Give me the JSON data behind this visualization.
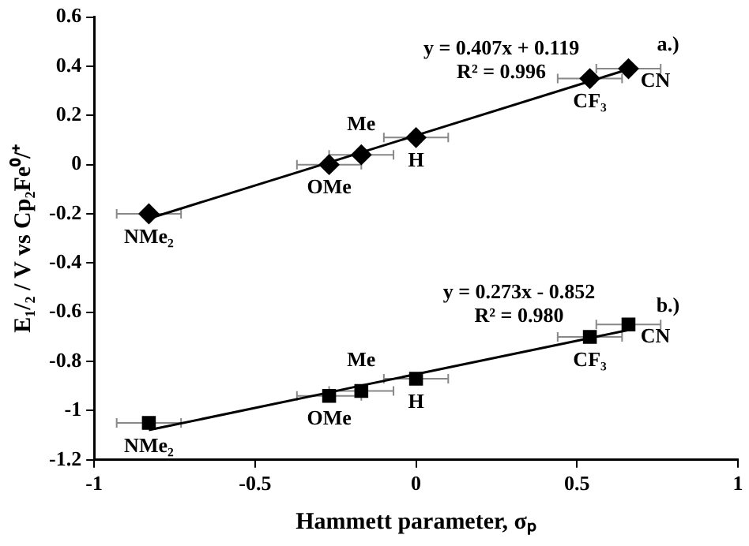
{
  "chart_data": {
    "type": "scatter",
    "xlabel": "Hammett parameter, σₚ",
    "ylabel": "E₁/₂ / V vs Cp₂Fe⁰/⁺",
    "x": [
      -0.83,
      -0.27,
      -0.17,
      0,
      0.54,
      0.66
    ],
    "series": [
      {
        "type": "scatter",
        "marker": "diamond",
        "color": "#000000",
        "values": [
          -0.2,
          0.0,
          0.04,
          0.11,
          0.35,
          0.39
        ],
        "xerrors": [
          0.1,
          0.1,
          0.1,
          0.1,
          0.1,
          0.1
        ]
      },
      {
        "type": "scatter",
        "marker": "square",
        "color": "#000000",
        "values": [
          -1.05,
          -0.94,
          -0.92,
          -0.87,
          -0.7,
          -0.65
        ],
        "xerrors": [
          0.1,
          0.1,
          0.1,
          0.1,
          0.1,
          0.1
        ]
      },
      {
        "type": "line",
        "marker": "none",
        "color": "#000000",
        "values": [
          -0.219,
          0.009,
          0.05,
          0.119,
          0.339,
          0.388
        ]
      },
      {
        "type": "line",
        "marker": "none",
        "color": "#000000",
        "values": [
          -1.079,
          -0.926,
          -0.898,
          -0.852,
          -0.705,
          -0.672
        ]
      }
    ],
    "xlim": [
      -1,
      1
    ],
    "xticks": [
      -1,
      -0.5,
      0,
      0.5,
      1
    ],
    "ylim": [
      -1.2,
      0.6
    ],
    "yticks": [
      -1.2,
      -1,
      -0.8,
      -0.6,
      -0.4,
      -0.2,
      0,
      0.2,
      0.4,
      0.6
    ],
    "grid": false,
    "legend": false,
    "annotations": [
      {
        "text": "NMe₂",
        "x": -0.83,
        "y": -0.2
      },
      {
        "text": "OMe",
        "x": -0.27,
        "y": 0.0
      },
      {
        "text": "Me",
        "x": -0.17,
        "y": 0.04
      },
      {
        "text": "H",
        "x": 0,
        "y": 0.11
      },
      {
        "text": "CF₃",
        "x": 0.54,
        "y": 0.35
      },
      {
        "text": "CN",
        "x": 0.66,
        "y": 0.39
      },
      {
        "text": "y = 0.407x + 0.119\nR² = 0.996",
        "x": 0.265,
        "y": 0.227
      },
      {
        "text": "a.)",
        "x": 0.66,
        "y": 0.388
      },
      {
        "text": "NMe₂",
        "x": -0.83,
        "y": -1.05
      },
      {
        "text": "OMe",
        "x": -0.27,
        "y": -0.94
      },
      {
        "text": "Me",
        "x": -0.17,
        "y": -0.92
      },
      {
        "text": "H",
        "x": 0,
        "y": -0.87
      },
      {
        "text": "CF₃",
        "x": 0.54,
        "y": -0.7
      },
      {
        "text": "CN",
        "x": 0.66,
        "y": -0.65
      },
      {
        "text": "y = 0.273x - 0.852\nR² = 0.980",
        "x": 0.32,
        "y": -0.765
      },
      {
        "text": "b.)",
        "x": 0.66,
        "y": -0.672
      }
    ]
  }
}
